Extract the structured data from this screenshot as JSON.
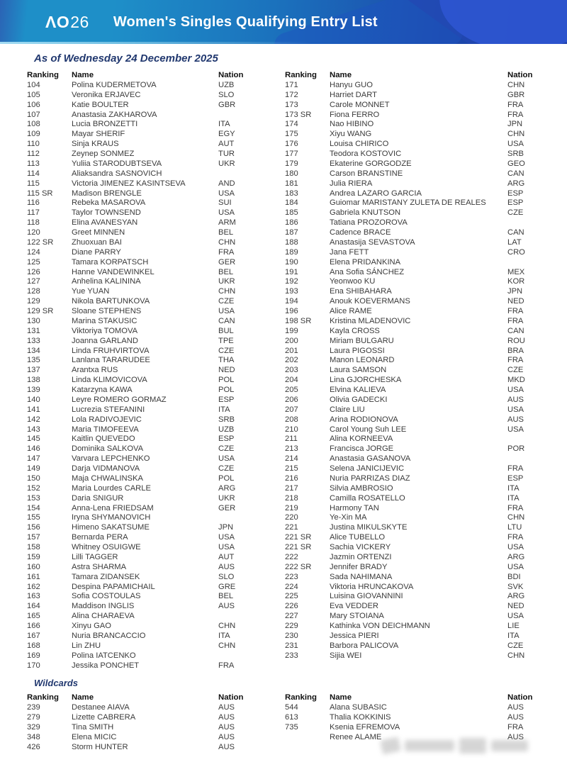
{
  "header": {
    "logo_ao": "ΛO",
    "logo_year": "26",
    "title": "Women's Singles Qualifying Entry List"
  },
  "date_line": "As of Wednesday 24 December 2025",
  "columns": {
    "ranking": "Ranking",
    "name": "Name",
    "nation": "Nation"
  },
  "main_list": {
    "left": [
      {
        "ranking": "104",
        "name": "Polina KUDERMETOVA",
        "nation": "UZB"
      },
      {
        "ranking": "105",
        "name": "Veronika ERJAVEC",
        "nation": "SLO"
      },
      {
        "ranking": "106",
        "name": "Katie BOULTER",
        "nation": "GBR"
      },
      {
        "ranking": "107",
        "name": "Anastasia ZAKHAROVA",
        "nation": ""
      },
      {
        "ranking": "108",
        "name": "Lucia BRONZETTI",
        "nation": "ITA"
      },
      {
        "ranking": "109",
        "name": "Mayar SHERIF",
        "nation": "EGY"
      },
      {
        "ranking": "110",
        "name": "Sinja KRAUS",
        "nation": "AUT"
      },
      {
        "ranking": "112",
        "name": "Zeynep SONMEZ",
        "nation": "TUR"
      },
      {
        "ranking": "113",
        "name": "Yuliia STARODUBTSEVA",
        "nation": "UKR"
      },
      {
        "ranking": "114",
        "name": "Aliaksandra SASNOVICH",
        "nation": ""
      },
      {
        "ranking": "115",
        "name": "Victoria JIMENEZ KASINTSEVA",
        "nation": "AND"
      },
      {
        "ranking": "115 SR",
        "name": "Madison BRENGLE",
        "nation": "USA"
      },
      {
        "ranking": "116",
        "name": "Rebeka MASAROVA",
        "nation": "SUI"
      },
      {
        "ranking": "117",
        "name": "Taylor TOWNSEND",
        "nation": "USA"
      },
      {
        "ranking": "118",
        "name": "Elina AVANESYAN",
        "nation": "ARM"
      },
      {
        "ranking": "120",
        "name": "Greet MINNEN",
        "nation": "BEL"
      },
      {
        "ranking": "122 SR",
        "name": "Zhuoxuan BAI",
        "nation": "CHN"
      },
      {
        "ranking": "124",
        "name": "Diane PARRY",
        "nation": "FRA"
      },
      {
        "ranking": "125",
        "name": "Tamara KORPATSCH",
        "nation": "GER"
      },
      {
        "ranking": "126",
        "name": "Hanne VANDEWINKEL",
        "nation": "BEL"
      },
      {
        "ranking": "127",
        "name": "Anhelina KALININA",
        "nation": "UKR"
      },
      {
        "ranking": "128",
        "name": "Yue YUAN",
        "nation": "CHN"
      },
      {
        "ranking": "129",
        "name": "Nikola BARTUNKOVA",
        "nation": "CZE"
      },
      {
        "ranking": "129 SR",
        "name": "Sloane STEPHENS",
        "nation": "USA"
      },
      {
        "ranking": "130",
        "name": "Marina STAKUSIC",
        "nation": "CAN"
      },
      {
        "ranking": "131",
        "name": "Viktoriya TOMOVA",
        "nation": "BUL"
      },
      {
        "ranking": "133",
        "name": "Joanna GARLAND",
        "nation": "TPE"
      },
      {
        "ranking": "134",
        "name": "Linda FRUHVIRTOVA",
        "nation": "CZE"
      },
      {
        "ranking": "135",
        "name": "Lanlana TARARUDEE",
        "nation": "THA"
      },
      {
        "ranking": "137",
        "name": "Arantxa RUS",
        "nation": "NED"
      },
      {
        "ranking": "138",
        "name": "Linda KLIMOVICOVA",
        "nation": "POL"
      },
      {
        "ranking": "139",
        "name": "Katarzyna KAWA",
        "nation": "POL"
      },
      {
        "ranking": "140",
        "name": "Leyre ROMERO GORMAZ",
        "nation": "ESP"
      },
      {
        "ranking": "141",
        "name": "Lucrezia STEFANINI",
        "nation": "ITA"
      },
      {
        "ranking": "142",
        "name": "Lola RADIVOJEVIC",
        "nation": "SRB"
      },
      {
        "ranking": "143",
        "name": "Maria TIMOFEEVA",
        "nation": "UZB"
      },
      {
        "ranking": "145",
        "name": "Kaitlin QUEVEDO",
        "nation": "ESP"
      },
      {
        "ranking": "146",
        "name": "Dominika SALKOVA",
        "nation": "CZE"
      },
      {
        "ranking": "147",
        "name": "Varvara LEPCHENKO",
        "nation": "USA"
      },
      {
        "ranking": "149",
        "name": "Darja VIDMANOVA",
        "nation": "CZE"
      },
      {
        "ranking": "150",
        "name": "Maja CHWALINSKA",
        "nation": "POL"
      },
      {
        "ranking": "152",
        "name": "Maria Lourdes CARLE",
        "nation": "ARG"
      },
      {
        "ranking": "153",
        "name": "Daria SNIGUR",
        "nation": "UKR"
      },
      {
        "ranking": "154",
        "name": "Anna-Lena FRIEDSAM",
        "nation": "GER"
      },
      {
        "ranking": "155",
        "name": "Iryna SHYMANOVICH",
        "nation": ""
      },
      {
        "ranking": "156",
        "name": "Himeno SAKATSUME",
        "nation": "JPN"
      },
      {
        "ranking": "157",
        "name": "Bernarda PERA",
        "nation": "USA"
      },
      {
        "ranking": "158",
        "name": "Whitney OSUIGWE",
        "nation": "USA"
      },
      {
        "ranking": "159",
        "name": "Lilli TAGGER",
        "nation": "AUT"
      },
      {
        "ranking": "160",
        "name": "Astra SHARMA",
        "nation": "AUS"
      },
      {
        "ranking": "161",
        "name": "Tamara ZIDANSEK",
        "nation": "SLO"
      },
      {
        "ranking": "162",
        "name": "Despina PAPAMICHAIL",
        "nation": "GRE"
      },
      {
        "ranking": "163",
        "name": "Sofia COSTOULAS",
        "nation": "BEL"
      },
      {
        "ranking": "164",
        "name": "Maddison INGLIS",
        "nation": "AUS"
      },
      {
        "ranking": "165",
        "name": "Alina CHARAEVA",
        "nation": ""
      },
      {
        "ranking": "166",
        "name": "Xinyu GAO",
        "nation": "CHN"
      },
      {
        "ranking": "167",
        "name": "Nuria BRANCACCIO",
        "nation": "ITA"
      },
      {
        "ranking": "168",
        "name": "Lin ZHU",
        "nation": "CHN"
      },
      {
        "ranking": "169",
        "name": "Polina IATCENKO",
        "nation": ""
      },
      {
        "ranking": "170",
        "name": "Jessika PONCHET",
        "nation": "FRA"
      }
    ],
    "right": [
      {
        "ranking": "171",
        "name": "Hanyu GUO",
        "nation": "CHN"
      },
      {
        "ranking": "172",
        "name": "Harriet DART",
        "nation": "GBR"
      },
      {
        "ranking": "173",
        "name": "Carole MONNET",
        "nation": "FRA"
      },
      {
        "ranking": "173 SR",
        "name": "Fiona FERRO",
        "nation": "FRA"
      },
      {
        "ranking": "174",
        "name": "Nao HIBINO",
        "nation": "JPN"
      },
      {
        "ranking": "175",
        "name": "Xiyu WANG",
        "nation": "CHN"
      },
      {
        "ranking": "176",
        "name": "Louisa CHIRICO",
        "nation": "USA"
      },
      {
        "ranking": "177",
        "name": "Teodora KOSTOVIC",
        "nation": "SRB"
      },
      {
        "ranking": "179",
        "name": "Ekaterine GORGODZE",
        "nation": "GEO"
      },
      {
        "ranking": "180",
        "name": "Carson BRANSTINE",
        "nation": "CAN"
      },
      {
        "ranking": "181",
        "name": "Julia RIERA",
        "nation": "ARG"
      },
      {
        "ranking": "183",
        "name": "Andrea LAZARO GARCIA",
        "nation": "ESP"
      },
      {
        "ranking": "184",
        "name": "Guiomar MARISTANY ZULETA DE REALES",
        "nation": "ESP"
      },
      {
        "ranking": "185",
        "name": "Gabriela KNUTSON",
        "nation": "CZE"
      },
      {
        "ranking": "186",
        "name": "Tatiana PROZOROVA",
        "nation": ""
      },
      {
        "ranking": "187",
        "name": "Cadence BRACE",
        "nation": "CAN"
      },
      {
        "ranking": "188",
        "name": "Anastasija SEVASTOVA",
        "nation": "LAT"
      },
      {
        "ranking": "189",
        "name": "Jana FETT",
        "nation": "CRO"
      },
      {
        "ranking": "190",
        "name": "Elena PRIDANKINA",
        "nation": ""
      },
      {
        "ranking": "191",
        "name": "Ana Sofia SÁNCHEZ",
        "nation": "MEX"
      },
      {
        "ranking": "192",
        "name": "Yeonwoo KU",
        "nation": "KOR"
      },
      {
        "ranking": "193",
        "name": "Ena SHIBAHARA",
        "nation": "JPN"
      },
      {
        "ranking": "194",
        "name": "Anouk KOEVERMANS",
        "nation": "NED"
      },
      {
        "ranking": "196",
        "name": "Alice RAME",
        "nation": "FRA"
      },
      {
        "ranking": "198 SR",
        "name": "Kristina MLADENOVIC",
        "nation": "FRA"
      },
      {
        "ranking": "199",
        "name": "Kayla CROSS",
        "nation": "CAN"
      },
      {
        "ranking": "200",
        "name": "Miriam BULGARU",
        "nation": "ROU"
      },
      {
        "ranking": "201",
        "name": "Laura PIGOSSI",
        "nation": "BRA"
      },
      {
        "ranking": "202",
        "name": "Manon LEONARD",
        "nation": "FRA"
      },
      {
        "ranking": "203",
        "name": "Laura SAMSON",
        "nation": "CZE"
      },
      {
        "ranking": "204",
        "name": "Lina GJORCHESKA",
        "nation": "MKD"
      },
      {
        "ranking": "205",
        "name": "Elvina KALIEVA",
        "nation": "USA"
      },
      {
        "ranking": "206",
        "name": "Olivia GADECKI",
        "nation": "AUS"
      },
      {
        "ranking": "207",
        "name": "Claire LIU",
        "nation": "USA"
      },
      {
        "ranking": "208",
        "name": "Arina RODIONOVA",
        "nation": "AUS"
      },
      {
        "ranking": "210",
        "name": "Carol Young Suh LEE",
        "nation": "USA"
      },
      {
        "ranking": "211",
        "name": "Alina KORNEEVA",
        "nation": ""
      },
      {
        "ranking": "213",
        "name": "Francisca JORGE",
        "nation": "POR"
      },
      {
        "ranking": "214",
        "name": "Anastasia GASANOVA",
        "nation": ""
      },
      {
        "ranking": "215",
        "name": "Selena JANICIJEVIC",
        "nation": "FRA"
      },
      {
        "ranking": "216",
        "name": "Nuria PARRIZAS DIAZ",
        "nation": "ESP"
      },
      {
        "ranking": "217",
        "name": "Silvia AMBROSIO",
        "nation": "ITA"
      },
      {
        "ranking": "218",
        "name": "Camilla ROSATELLO",
        "nation": "ITA"
      },
      {
        "ranking": "219",
        "name": "Harmony TAN",
        "nation": "FRA"
      },
      {
        "ranking": "220",
        "name": "Ye-Xin MA",
        "nation": "CHN"
      },
      {
        "ranking": "221",
        "name": "Justina MIKULSKYTE",
        "nation": "LTU"
      },
      {
        "ranking": "221 SR",
        "name": "Alice TUBELLO",
        "nation": "FRA"
      },
      {
        "ranking": "221 SR",
        "name": "Sachia VICKERY",
        "nation": "USA"
      },
      {
        "ranking": "222",
        "name": "Jazmin ORTENZI",
        "nation": "ARG"
      },
      {
        "ranking": "222 SR",
        "name": "Jennifer BRADY",
        "nation": "USA"
      },
      {
        "ranking": "223",
        "name": "Sada NAHIMANA",
        "nation": "BDI"
      },
      {
        "ranking": "224",
        "name": "Viktoria HRUNCAKOVA",
        "nation": "SVK"
      },
      {
        "ranking": "225",
        "name": "Luisina GIOVANNINI",
        "nation": "ARG"
      },
      {
        "ranking": "226",
        "name": "Eva VEDDER",
        "nation": "NED"
      },
      {
        "ranking": "227",
        "name": "Mary STOIANA",
        "nation": "USA"
      },
      {
        "ranking": "229",
        "name": "Kathinka VON DEICHMANN",
        "nation": "LIE"
      },
      {
        "ranking": "230",
        "name": "Jessica PIERI",
        "nation": "ITA"
      },
      {
        "ranking": "231",
        "name": "Barbora PALICOVA",
        "nation": "CZE"
      },
      {
        "ranking": "233",
        "name": "Sijia WEI",
        "nation": "CHN"
      }
    ]
  },
  "wildcards": {
    "label": "Wildcards",
    "left": [
      {
        "ranking": "239",
        "name": "Destanee AIAVA",
        "nation": "AUS"
      },
      {
        "ranking": "279",
        "name": "Lizette CABRERA",
        "nation": "AUS"
      },
      {
        "ranking": "329",
        "name": "Tina SMITH",
        "nation": "AUS"
      },
      {
        "ranking": "348",
        "name": "Elena MICIC",
        "nation": "AUS"
      },
      {
        "ranking": "426",
        "name": "Storm HUNTER",
        "nation": "AUS"
      }
    ],
    "right": [
      {
        "ranking": "544",
        "name": "Alana SUBASIC",
        "nation": "AUS"
      },
      {
        "ranking": "613",
        "name": "Thalia KOKKINIS",
        "nation": "AUS"
      },
      {
        "ranking": "735",
        "name": "Ksenia EFREMOVA",
        "nation": "FRA"
      },
      {
        "ranking": "",
        "name": "Renee ALAME",
        "nation": "AUS"
      }
    ]
  },
  "colors": {
    "banner_gradient_left": "#1E8FC8",
    "banner_gradient_right": "#1C3AA4",
    "heading_navy": "#21386F",
    "row_text": "#3B3B3B"
  }
}
